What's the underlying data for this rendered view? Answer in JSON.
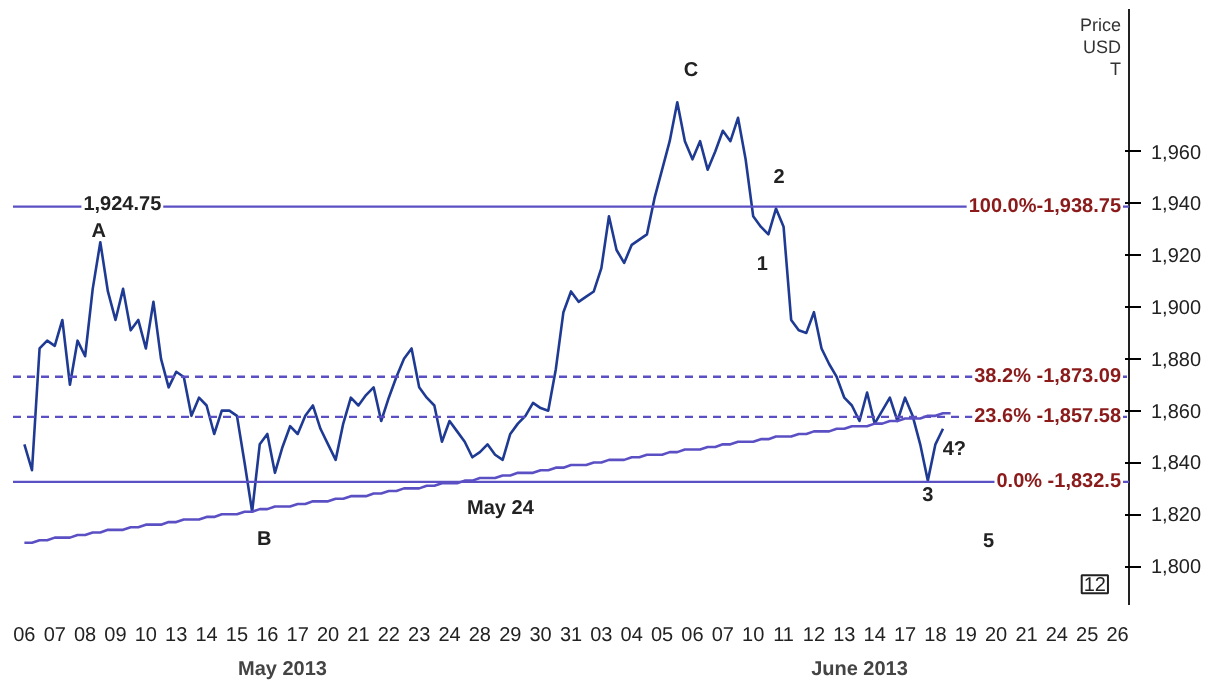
{
  "chart_data": {
    "type": "line",
    "ylabel": "Price\nUSD\nT",
    "categories": [
      "06",
      null,
      null,
      null,
      "07",
      null,
      null,
      null,
      "08",
      null,
      null,
      null,
      "09",
      null,
      null,
      null,
      "10",
      null,
      null,
      null,
      "13",
      null,
      null,
      null,
      "14",
      null,
      null,
      null,
      "15",
      null,
      null,
      null,
      "16",
      null,
      null,
      null,
      "17",
      null,
      null,
      null,
      "20",
      null,
      null,
      null,
      "21",
      null,
      null,
      null,
      "22",
      null,
      null,
      null,
      "23",
      null,
      null,
      null,
      "24",
      null,
      null,
      null,
      "28",
      null,
      null,
      null,
      "29",
      null,
      null,
      null,
      "30",
      null,
      null,
      null,
      "31",
      null,
      null,
      null,
      "03",
      null,
      null,
      null,
      "04",
      null,
      null,
      null,
      "05",
      null,
      null,
      null,
      "06",
      null,
      null,
      null,
      "07",
      null,
      null,
      null,
      "10",
      null,
      null,
      null,
      "11",
      null,
      null,
      null,
      "12",
      null,
      null,
      null,
      "13",
      null,
      null,
      null,
      "14",
      null,
      null,
      null,
      "17",
      null,
      null,
      null,
      "18",
      null,
      null,
      null,
      "19",
      null,
      null,
      null,
      "20",
      null,
      null,
      null,
      "21",
      null,
      null,
      null,
      "24",
      null,
      null,
      null,
      "25",
      null,
      null,
      null,
      "26",
      null
    ],
    "series": [
      {
        "color": "#1f3a93",
        "values": [
          1847,
          1837,
          1884,
          1887,
          1885,
          1895,
          1870,
          1887,
          1881,
          1907,
          1925,
          1906,
          1895,
          1907,
          1891,
          1895,
          1884,
          1902,
          1880,
          1869,
          1875,
          1873,
          1858,
          1865,
          1862,
          1851,
          1860,
          1860,
          1858,
          1840,
          1821,
          1847,
          1851,
          1836,
          1846,
          1854,
          1851,
          1858,
          1862,
          1853,
          1847,
          1841,
          1855,
          1865,
          1862,
          1866,
          1869,
          1856,
          1865,
          1873,
          1880,
          1884,
          1869,
          1865,
          1862,
          1848,
          1856,
          1852,
          1848,
          1842,
          1844,
          1847,
          1843,
          1841,
          1851,
          1855,
          1858,
          1863,
          1861,
          1860,
          1876,
          1898,
          1906,
          1902,
          1904,
          1906,
          1915,
          1935,
          1922,
          1917,
          1924,
          1926,
          1928,
          1942,
          1953,
          1964,
          1979,
          1964,
          1957,
          1964,
          1953,
          1960,
          1968,
          1964,
          1973,
          1957,
          1935,
          1931,
          1928,
          1938,
          1931,
          1895,
          1891,
          1890,
          1898,
          1884,
          1878,
          1873,
          1865,
          1862,
          1856,
          1867,
          1855,
          1860,
          1865,
          1856,
          1865,
          1858,
          1847,
          1833,
          1847,
          1853,
          null,
          null,
          null,
          null,
          null,
          null,
          null,
          null,
          null,
          null,
          null,
          null,
          null,
          null,
          null,
          null,
          null,
          null,
          null,
          null,
          null,
          null,
          null,
          null
        ]
      },
      {
        "type": "line",
        "color": "#5b4fc4",
        "values": [
          1809,
          1809,
          1810,
          1810,
          1811,
          1811,
          1811,
          1812,
          1812,
          1813,
          1813,
          1814,
          1814,
          1814,
          1815,
          1815,
          1816,
          1816,
          1816,
          1817,
          1817,
          1818,
          1818,
          1818,
          1819,
          1819,
          1820,
          1820,
          1820,
          1821,
          1821,
          1822,
          1822,
          1823,
          1823,
          1823,
          1824,
          1824,
          1825,
          1825,
          1825,
          1826,
          1826,
          1827,
          1827,
          1827,
          1828,
          1828,
          1829,
          1829,
          1830,
          1830,
          1830,
          1831,
          1831,
          1832,
          1832,
          1832,
          1833,
          1833,
          1834,
          1834,
          1834,
          1835,
          1835,
          1836,
          1836,
          1836,
          1837,
          1837,
          1838,
          1838,
          1839,
          1839,
          1839,
          1840,
          1840,
          1841,
          1841,
          1841,
          1842,
          1842,
          1843,
          1843,
          1843,
          1844,
          1844,
          1845,
          1845,
          1845,
          1846,
          1846,
          1847,
          1847,
          1848,
          1848,
          1848,
          1849,
          1849,
          1850,
          1850,
          1850,
          1851,
          1851,
          1852,
          1852,
          1852,
          1853,
          1853,
          1854,
          1854,
          1854,
          1855,
          1855,
          1856,
          1856,
          1857,
          1857,
          1857,
          1858,
          1858,
          1859,
          1859,
          null,
          null,
          null,
          null,
          null,
          null,
          null,
          null,
          null,
          null,
          null,
          null,
          null,
          null,
          null,
          null,
          null,
          null,
          null,
          null,
          null,
          null,
          null
        ]
      }
    ],
    "ylim": [
      1785,
      2015
    ],
    "yticks": [
      {
        "value": 1800,
        "label": "1,800"
      },
      {
        "value": 1820,
        "label": "1,820"
      },
      {
        "value": 1840,
        "label": "1,840"
      },
      {
        "value": 1860,
        "label": "1,860"
      },
      {
        "value": 1880,
        "label": "1,880"
      },
      {
        "value": 1900,
        "label": "1,900"
      },
      {
        "value": 1920,
        "label": "1,920"
      },
      {
        "value": 1940,
        "label": "1,940"
      },
      {
        "value": 1960,
        "label": "1,960"
      }
    ],
    "ref_lines": [
      {
        "axis": "y",
        "value": 1938.75,
        "color": "#5b4fc4",
        "line_style": "solid"
      },
      {
        "axis": "y",
        "value": 1873.09,
        "color": "#5b4fc4",
        "line_style": "dashed"
      },
      {
        "axis": "y",
        "value": 1857.58,
        "color": "#5b4fc4",
        "line_style": "dashed"
      },
      {
        "axis": "y",
        "value": 1832.5,
        "color": "#5b4fc4",
        "line_style": "solid"
      }
    ],
    "annotations": [
      "1,924.75",
      "A",
      "B",
      "May 24",
      "C",
      "2",
      "1",
      "4?",
      "3",
      "5",
      "May 2013",
      "June 2013",
      "12",
      "100.0%-1,938.75",
      "38.2% -1,873.09",
      "23.6% -1,857.58",
      "0.0% -1,832.5"
    ],
    "grid": false,
    "marker": "none",
    "line_style": "solid"
  }
}
